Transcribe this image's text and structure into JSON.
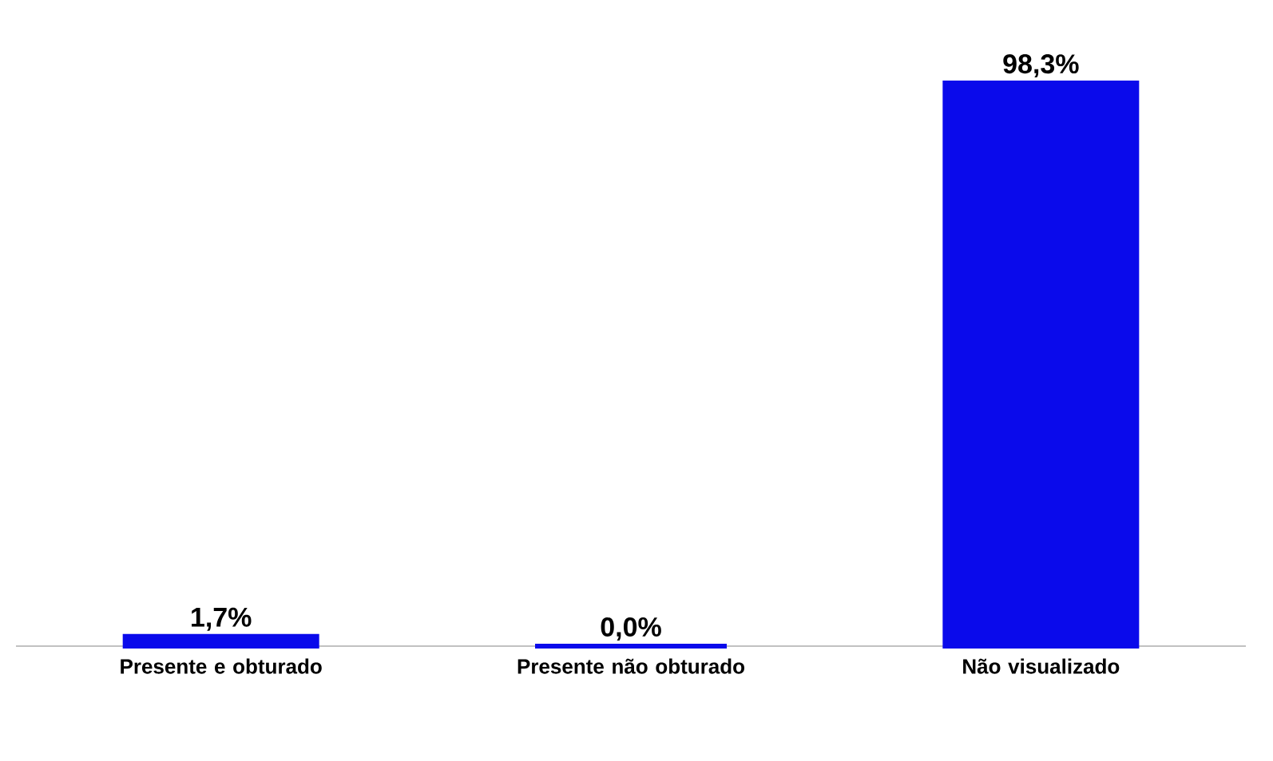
{
  "chart_data": {
    "type": "bar",
    "categories": [
      "Presente e obturado",
      "Presente não obturado",
      "Não visualizado"
    ],
    "values": [
      1.7,
      0.0,
      98.3
    ],
    "value_labels": [
      "1,7%",
      "0,0%",
      "98,3%"
    ],
    "color": "#0a0aeb"
  }
}
